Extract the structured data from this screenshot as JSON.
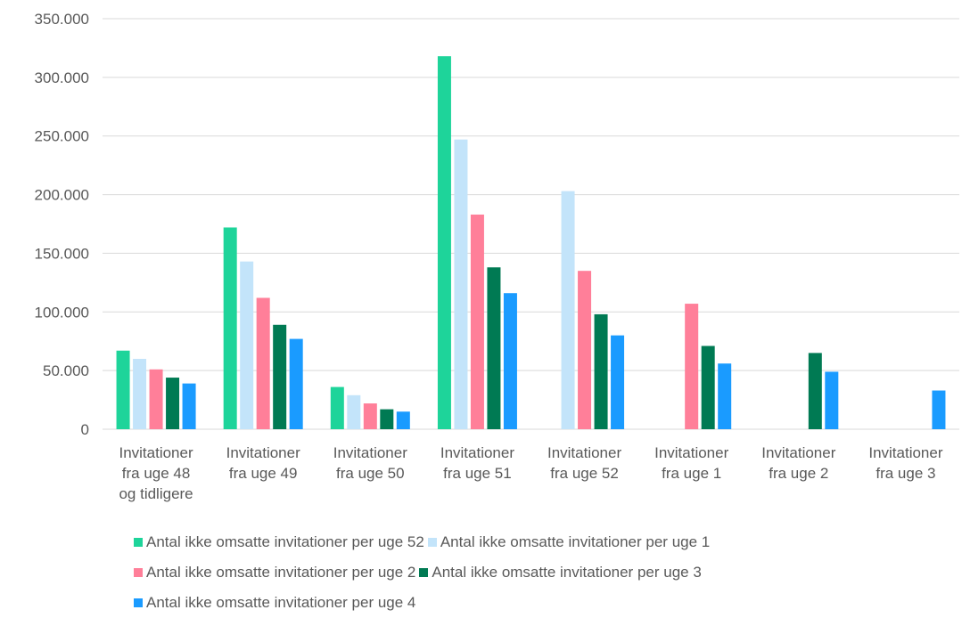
{
  "chart_data": {
    "type": "bar",
    "title": "",
    "xlabel": "",
    "ylabel": "",
    "ylim": [
      0,
      350000
    ],
    "yticks": [
      {
        "value": 0,
        "label": "0"
      },
      {
        "value": 50000,
        "label": "50.000"
      },
      {
        "value": 100000,
        "label": "100.000"
      },
      {
        "value": 150000,
        "label": "150.000"
      },
      {
        "value": 200000,
        "label": "200.000"
      },
      {
        "value": 250000,
        "label": "250.000"
      },
      {
        "value": 300000,
        "label": "300.000"
      },
      {
        "value": 350000,
        "label": "350.000"
      }
    ],
    "grid": true,
    "legend_position": "bottom",
    "categories": [
      [
        "Invitationer",
        "fra uge 48",
        "og tidligere"
      ],
      [
        "Invitationer",
        "fra uge 49"
      ],
      [
        "Invitationer",
        "fra uge 50"
      ],
      [
        "Invitationer",
        "fra uge 51"
      ],
      [
        "Invitationer",
        "fra uge 52"
      ],
      [
        "Invitationer",
        "fra uge 1"
      ],
      [
        "Invitationer",
        "fra uge 2"
      ],
      [
        "Invitationer",
        "fra uge 3"
      ]
    ],
    "series": [
      {
        "name": "Antal ikke omsatte invitationer per uge 52",
        "color": "#1ed49a",
        "values": [
          67000,
          172000,
          36000,
          318000,
          null,
          null,
          null,
          null
        ]
      },
      {
        "name": "Antal ikke omsatte invitationer per uge 1",
        "color": "#c3e4fa",
        "values": [
          60000,
          143000,
          29000,
          247000,
          203000,
          null,
          null,
          null
        ]
      },
      {
        "name": "Antal ikke omsatte invitationer per uge 2",
        "color": "#ff7f99",
        "values": [
          51000,
          112000,
          22000,
          183000,
          135000,
          107000,
          null,
          null
        ]
      },
      {
        "name": "Antal ikke omsatte invitationer per uge 3",
        "color": "#007a53",
        "values": [
          44000,
          89000,
          17000,
          138000,
          98000,
          71000,
          65000,
          null
        ]
      },
      {
        "name": "Antal ikke omsatte invitationer per uge 4",
        "color": "#1a9bff",
        "values": [
          39000,
          77000,
          15000,
          116000,
          80000,
          56000,
          49000,
          33000
        ]
      }
    ],
    "legend_rows": [
      [
        0,
        1
      ],
      [
        2,
        3
      ],
      [
        4
      ]
    ],
    "gridline_color": "#d9d9d9"
  }
}
